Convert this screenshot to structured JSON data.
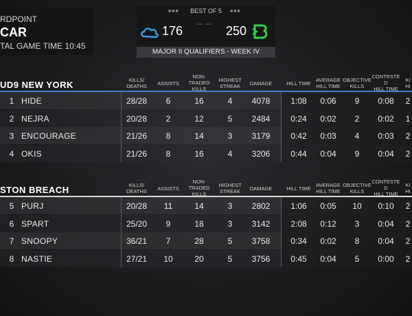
{
  "header": {
    "mode": "RDPOINT",
    "map": "CAR",
    "game_time": "TAL GAME TIME 10:45"
  },
  "scoreboard": {
    "best_of": "BEST OF 5",
    "left_score": "176",
    "right_score": "250",
    "separator": "-- --",
    "event": "MAJOR II QUALIFIERS - WEEK IV",
    "left_team_color": "#3aa0e0",
    "right_team_color": "#37d14a"
  },
  "columns": {
    "kd": [
      "KILLS/",
      "DEATHS"
    ],
    "assists": [
      "ASSISTS"
    ],
    "non_traded": [
      "NON-",
      "TRADED",
      "KILLS"
    ],
    "streak": [
      "HIGHEST",
      "STREAK"
    ],
    "damage": [
      "DAMAGE"
    ],
    "hill_time": [
      "HILL TIME"
    ],
    "avg_hill": [
      "AVERAGE",
      "HILL TIME"
    ],
    "obj_kills": [
      "OBJECTIVE",
      "KILLS"
    ],
    "contested": [
      "CONTESTE",
      "D",
      "HILL TIME"
    ],
    "last": [
      "KI",
      "HI"
    ]
  },
  "teams": [
    {
      "name": "UD9 NEW YORK",
      "accent": "#3d7fd6",
      "players": [
        {
          "num": "1",
          "name": "HIDE",
          "kd": "28/28",
          "assists": "6",
          "non_traded": "16",
          "streak": "4",
          "damage": "4078",
          "hill": "1:08",
          "avg": "0:06",
          "obj": "9",
          "contested": "0:08",
          "last": "2"
        },
        {
          "num": "2",
          "name": "NEJRA",
          "kd": "20/28",
          "assists": "2",
          "non_traded": "12",
          "streak": "5",
          "damage": "2484",
          "hill": "0:24",
          "avg": "0:02",
          "obj": "2",
          "contested": "0:02",
          "last": "1"
        },
        {
          "num": "3",
          "name": "ENCOURAGE",
          "kd": "21/26",
          "assists": "8",
          "non_traded": "14",
          "streak": "3",
          "damage": "3179",
          "hill": "0:42",
          "avg": "0:03",
          "obj": "4",
          "contested": "0:03",
          "last": "2"
        },
        {
          "num": "4",
          "name": "OKIS",
          "kd": "21/26",
          "assists": "8",
          "non_traded": "16",
          "streak": "4",
          "damage": "3206",
          "hill": "0:44",
          "avg": "0:04",
          "obj": "9",
          "contested": "0:04",
          "last": "2"
        }
      ]
    },
    {
      "name": "STON BREACH",
      "accent": "#d9d9d9",
      "players": [
        {
          "num": "5",
          "name": "PURJ",
          "kd": "20/28",
          "assists": "11",
          "non_traded": "14",
          "streak": "3",
          "damage": "2802",
          "hill": "1:06",
          "avg": "0:05",
          "obj": "10",
          "contested": "0:10",
          "last": "2"
        },
        {
          "num": "6",
          "name": "SPART",
          "kd": "25/20",
          "assists": "9",
          "non_traded": "18",
          "streak": "3",
          "damage": "3142",
          "hill": "2:08",
          "avg": "0:12",
          "obj": "3",
          "contested": "0:04",
          "last": "2"
        },
        {
          "num": "7",
          "name": "SNOOPY",
          "kd": "36/21",
          "assists": "7",
          "non_traded": "28",
          "streak": "5",
          "damage": "3758",
          "hill": "0:34",
          "avg": "0:02",
          "obj": "8",
          "contested": "0:04",
          "last": "2"
        },
        {
          "num": "8",
          "name": "NASTIE",
          "kd": "27/21",
          "assists": "10",
          "non_traded": "20",
          "streak": "5",
          "damage": "3756",
          "hill": "0:45",
          "avg": "0:04",
          "obj": "5",
          "contested": "0:00",
          "last": "2"
        }
      ]
    }
  ]
}
